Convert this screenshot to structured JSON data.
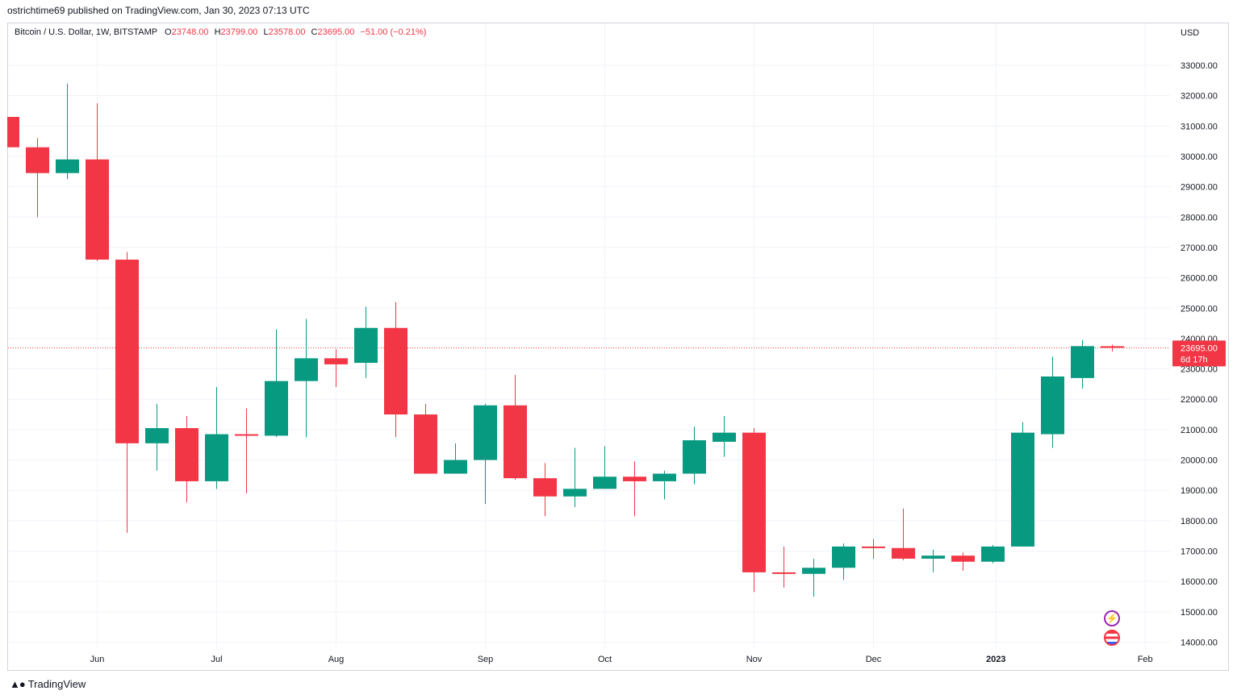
{
  "publisher_line": "ostrichtime69 published on TradingView.com, Jan 30, 2023 07:13 UTC",
  "legend": {
    "symbol": "Bitcoin / U.S. Dollar, 1W, BITSTAMP",
    "o_label": "O",
    "o_value": "23748.00",
    "h_label": "H",
    "h_value": "23799.00",
    "l_label": "L",
    "l_value": "23578.00",
    "c_label": "C",
    "c_value": "23695.00",
    "change": "−51.00 (−0.21%)"
  },
  "currency": "USD",
  "last_price": {
    "value": "23695.00",
    "countdown": "6d 17h"
  },
  "brand": "TradingView",
  "icons": {
    "flash": "flash-icon",
    "flag": "us-flag-icon"
  },
  "colors": {
    "up": "#089981",
    "down": "#f23645",
    "grid": "#f0f3fa"
  },
  "chart_data": {
    "type": "candlestick",
    "ylim": [
      13700,
      33700
    ],
    "y_ticks": [
      14000,
      15000,
      16000,
      17000,
      18000,
      19000,
      20000,
      21000,
      22000,
      23000,
      24000,
      25000,
      26000,
      27000,
      28000,
      29000,
      30000,
      31000,
      32000,
      33000
    ],
    "y_tick_labels": [
      "14000.00",
      "15000.00",
      "16000.00",
      "17000.00",
      "18000.00",
      "19000.00",
      "20000.00",
      "21000.00",
      "22000.00",
      "23000.00",
      "24000.00",
      "25000.00",
      "26000.00",
      "27000.00",
      "28000.00",
      "29000.00",
      "30000.00",
      "31000.00",
      "32000.00",
      "33000.00"
    ],
    "x_labels": [
      {
        "label": "Jun",
        "week": 3
      },
      {
        "label": "Jul",
        "week": 7
      },
      {
        "label": "Aug",
        "week": 11
      },
      {
        "label": "Sep",
        "week": 16
      },
      {
        "label": "Oct",
        "week": 20
      },
      {
        "label": "Nov",
        "week": 25
      },
      {
        "label": "Dec",
        "week": 29
      },
      {
        "label": "2023",
        "week": 33.1,
        "bold": true
      },
      {
        "label": "Feb",
        "week": 38.1
      }
    ],
    "candles": [
      {
        "week": 0,
        "o": 31300,
        "h": 31300,
        "l": 30300,
        "c": 30300
      },
      {
        "week": 1,
        "o": 30300,
        "h": 30600,
        "l": 28000,
        "c": 29450
      },
      {
        "week": 2,
        "o": 29450,
        "h": 32400,
        "l": 29250,
        "c": 29900
      },
      {
        "week": 3,
        "o": 29900,
        "h": 31750,
        "l": 26550,
        "c": 26600
      },
      {
        "week": 4,
        "o": 26600,
        "h": 26850,
        "l": 17600,
        "c": 20550
      },
      {
        "week": 5,
        "o": 20550,
        "h": 21850,
        "l": 19650,
        "c": 21050
      },
      {
        "week": 6,
        "o": 21050,
        "h": 21450,
        "l": 18600,
        "c": 19300
      },
      {
        "week": 7,
        "o": 19300,
        "h": 22400,
        "l": 19050,
        "c": 20850
      },
      {
        "week": 8,
        "o": 20850,
        "h": 21700,
        "l": 18900,
        "c": 20800
      },
      {
        "week": 9,
        "o": 20800,
        "h": 24300,
        "l": 20750,
        "c": 22600
      },
      {
        "week": 10,
        "o": 22600,
        "h": 24650,
        "l": 20750,
        "c": 23350
      },
      {
        "week": 11,
        "o": 23350,
        "h": 23650,
        "l": 22400,
        "c": 23150
      },
      {
        "week": 12,
        "o": 23200,
        "h": 25050,
        "l": 22700,
        "c": 24350
      },
      {
        "week": 13,
        "o": 24350,
        "h": 25200,
        "l": 20750,
        "c": 21500
      },
      {
        "week": 14,
        "o": 21500,
        "h": 21850,
        "l": 19550,
        "c": 19550
      },
      {
        "week": 15,
        "o": 19550,
        "h": 20550,
        "l": 19550,
        "c": 20000
      },
      {
        "week": 16,
        "o": 20000,
        "h": 21850,
        "l": 18550,
        "c": 21800
      },
      {
        "week": 17,
        "o": 21800,
        "h": 22800,
        "l": 19350,
        "c": 19400
      },
      {
        "week": 18,
        "o": 19400,
        "h": 19900,
        "l": 18150,
        "c": 18800
      },
      {
        "week": 19,
        "o": 18800,
        "h": 20400,
        "l": 18450,
        "c": 19050
      },
      {
        "week": 20,
        "o": 19050,
        "h": 20450,
        "l": 19050,
        "c": 19450
      },
      {
        "week": 21,
        "o": 19450,
        "h": 19950,
        "l": 18150,
        "c": 19300
      },
      {
        "week": 22,
        "o": 19300,
        "h": 19650,
        "l": 18700,
        "c": 19550
      },
      {
        "week": 23,
        "o": 19550,
        "h": 21100,
        "l": 19200,
        "c": 20650
      },
      {
        "week": 24,
        "o": 20600,
        "h": 21450,
        "l": 20100,
        "c": 20900
      },
      {
        "week": 25,
        "o": 20900,
        "h": 21050,
        "l": 15650,
        "c": 16300
      },
      {
        "week": 26,
        "o": 16300,
        "h": 17150,
        "l": 15800,
        "c": 16250
      },
      {
        "week": 27,
        "o": 16250,
        "h": 16750,
        "l": 15500,
        "c": 16450
      },
      {
        "week": 28,
        "o": 16450,
        "h": 17250,
        "l": 16050,
        "c": 17150
      },
      {
        "week": 29,
        "o": 17150,
        "h": 17400,
        "l": 16750,
        "c": 17100
      },
      {
        "week": 30,
        "o": 17100,
        "h": 18400,
        "l": 16700,
        "c": 16750
      },
      {
        "week": 31,
        "o": 16750,
        "h": 17050,
        "l": 16300,
        "c": 16850
      },
      {
        "week": 32,
        "o": 16850,
        "h": 16950,
        "l": 16350,
        "c": 16650
      },
      {
        "week": 33,
        "o": 16650,
        "h": 17200,
        "l": 16600,
        "c": 17150
      },
      {
        "week": 34,
        "o": 17150,
        "h": 21250,
        "l": 17150,
        "c": 20900
      },
      {
        "week": 35,
        "o": 20850,
        "h": 23400,
        "l": 20400,
        "c": 22750
      },
      {
        "week": 36,
        "o": 22700,
        "h": 23950,
        "l": 22350,
        "c": 23750
      },
      {
        "week": 37,
        "o": 23748,
        "h": 23799,
        "l": 23578,
        "c": 23695
      }
    ]
  }
}
